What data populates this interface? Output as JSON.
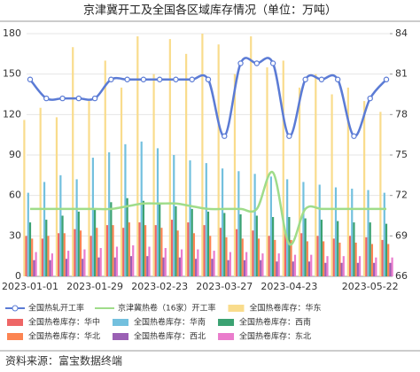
{
  "chart_data": {
    "type": "bar-line",
    "title": "京津冀开工及全国各区域库存情况（单位：万吨）",
    "source": "资料来源：富宝数据终端",
    "categories": [
      "2023-01-01",
      null,
      null,
      null,
      "2023-01-29",
      null,
      null,
      null,
      "2023-02-23",
      null,
      null,
      null,
      "2023-03-27",
      null,
      null,
      null,
      "2023-04-23",
      null,
      null,
      null,
      null,
      "2023-05-22",
      null
    ],
    "ylim": [
      0,
      180
    ],
    "yticks": [
      0,
      30,
      60,
      90,
      120,
      150,
      180
    ],
    "y2lim": [
      66,
      84
    ],
    "y2ticks": [
      66,
      69,
      72,
      75,
      78,
      81,
      84
    ],
    "grid": true,
    "series": [
      {
        "name": "全国热轧开工率",
        "type": "line",
        "axis": "y2",
        "markers": true,
        "color": "#5b7bd5",
        "values": [
          80.6,
          79.2,
          79.2,
          79.2,
          79.2,
          80.6,
          80.6,
          80.6,
          80.6,
          80.6,
          80.6,
          80.6,
          76.4,
          81.8,
          81.8,
          81.8,
          76.4,
          80.6,
          80.6,
          80.6,
          76.4,
          79.2,
          80.6
        ]
      },
      {
        "name": "京津冀热卷（16家）开工率",
        "type": "line",
        "axis": "y2",
        "markers": false,
        "color": "#9fdc8a",
        "values": [
          71,
          71,
          71,
          71,
          71,
          71,
          71.2,
          71.4,
          71.4,
          71.4,
          71.2,
          71,
          71,
          71,
          71,
          73.7,
          68.4,
          71,
          71,
          71,
          71,
          71,
          71
        ]
      },
      {
        "name": "全国热卷库存：华东",
        "type": "bar",
        "color": "#f9dc8c",
        "values": [
          116,
          125,
          118,
          170,
          130,
          160,
          140,
          178,
          150,
          176,
          165,
          180,
          172,
          150,
          178,
          155,
          160,
          140,
          150,
          135,
          140,
          130,
          122
        ]
      },
      {
        "name": "全国热卷库存：华中",
        "type": "bar",
        "color": "#ee6666",
        "values": [
          30,
          28,
          32,
          35,
          30,
          38,
          36,
          40,
          38,
          42,
          40,
          38,
          36,
          35,
          34,
          30,
          33,
          32,
          30,
          28,
          30,
          29,
          27
        ]
      },
      {
        "name": "全国热卷库存：华南",
        "type": "bar",
        "color": "#73c0de",
        "values": [
          62,
          70,
          75,
          72,
          88,
          92,
          98,
          100,
          95,
          90,
          86,
          84,
          80,
          78,
          76,
          74,
          72,
          70,
          68,
          66,
          65,
          64,
          62
        ]
      },
      {
        "name": "全国热卷库存：西南",
        "type": "bar",
        "color": "#3ba272",
        "values": [
          40,
          42,
          45,
          48,
          50,
          55,
          58,
          56,
          54,
          52,
          50,
          48,
          47,
          46,
          45,
          44,
          44,
          43,
          42,
          41,
          40,
          40,
          39
        ]
      },
      {
        "name": "全国热卷库存：华北",
        "type": "bar",
        "color": "#fc8452",
        "values": [
          28,
          30,
          32,
          34,
          36,
          38,
          40,
          38,
          36,
          34,
          32,
          30,
          29,
          28,
          28,
          27,
          27,
          26,
          26,
          25,
          25,
          24,
          24
        ]
      },
      {
        "name": "全国热卷库存：西北",
        "type": "bar",
        "color": "#9a60b4",
        "values": [
          12,
          12,
          13,
          13,
          14,
          14,
          15,
          15,
          14,
          14,
          13,
          13,
          12,
          12,
          12,
          11,
          11,
          11,
          10,
          10,
          10,
          10,
          10
        ]
      },
      {
        "name": "全国热卷库存：东北",
        "type": "bar",
        "color": "#ea7ccc",
        "values": [
          18,
          17,
          19,
          20,
          21,
          22,
          23,
          22,
          21,
          20,
          20,
          19,
          18,
          18,
          17,
          17,
          16,
          16,
          15,
          15,
          15,
          14,
          14
        ]
      }
    ]
  }
}
